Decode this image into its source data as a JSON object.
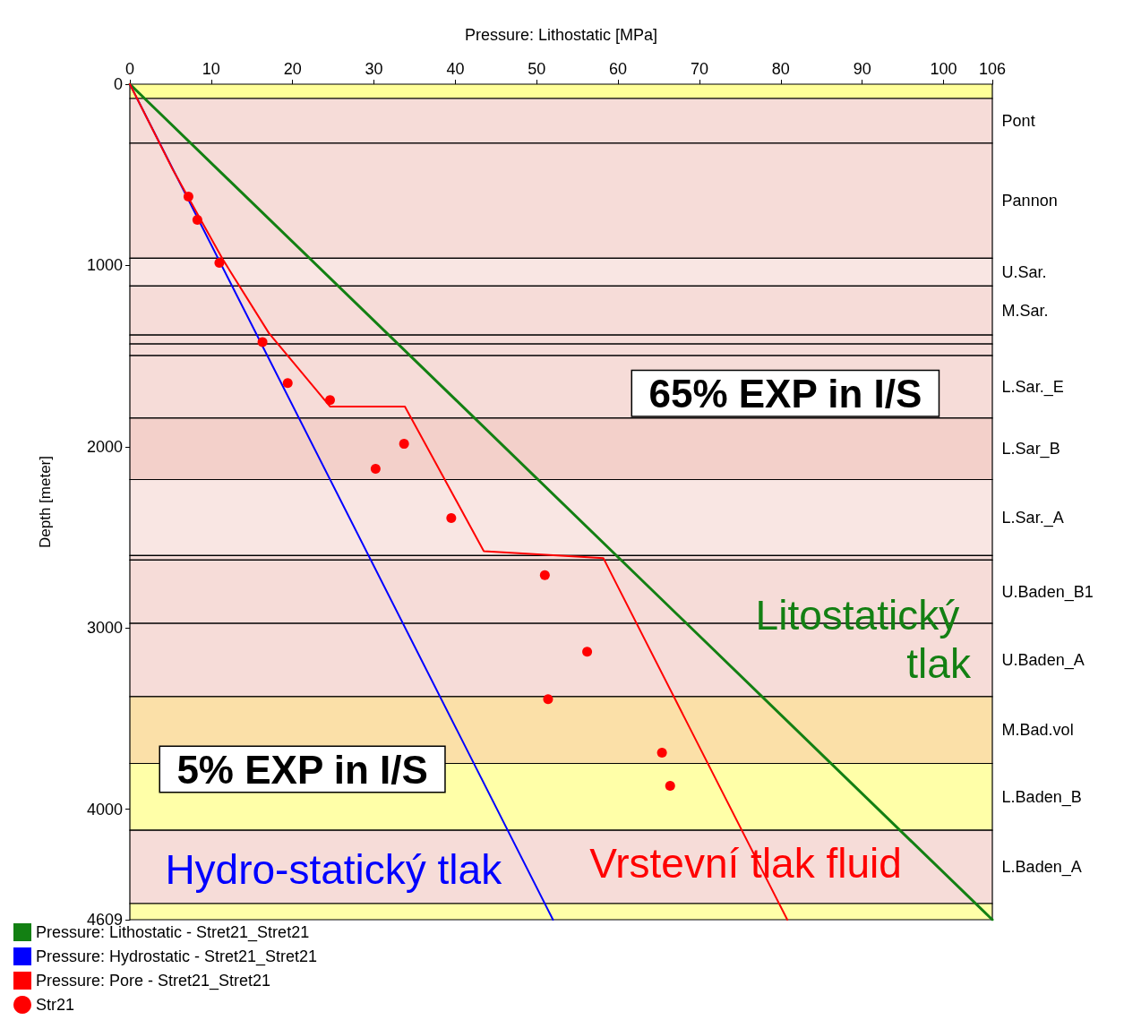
{
  "chart_data": {
    "type": "line",
    "xlabel": "Pressure: Lithostatic [MPa]",
    "ylabel": "Depth [meter]",
    "xlim": [
      0,
      106
    ],
    "xticks": [
      0,
      10,
      20,
      30,
      40,
      50,
      60,
      70,
      80,
      90,
      100,
      106
    ],
    "ylim": [
      4609,
      0
    ],
    "yticks": [
      0,
      1000,
      2000,
      3000,
      4000,
      4609
    ],
    "grid": false,
    "legend": "bottom left",
    "series": [
      {
        "name": "Pressure: Lithostatic - Stret21_Stret21",
        "color": "#138013",
        "marker": "none",
        "line_style": "solid",
        "x": [
          0,
          106
        ],
        "values": [
          0,
          4609
        ]
      },
      {
        "name": "Pressure: Hydrostatic - Stret21_Stret21",
        "color": "#0000ff",
        "marker": "none",
        "line_style": "solid",
        "x": [
          0,
          52
        ],
        "values": [
          0,
          4609
        ]
      },
      {
        "name": "Pressure: Pore - Stret21_Stret21",
        "color": "#ff0000",
        "marker": "none",
        "line_style": "solid",
        "x": [
          0,
          5.3,
          11.4,
          17.1,
          24.6,
          33.8,
          43.5,
          58.2,
          80.8
        ],
        "values": [
          0,
          473,
          965,
          1374,
          1778,
          1778,
          2576,
          2615,
          4609
        ]
      },
      {
        "name": "Str21",
        "type": "scatter",
        "color": "#ff0000",
        "marker": "circle",
        "x": [
          7.2,
          8.3,
          11.0,
          16.3,
          19.4,
          24.6,
          33.7,
          30.2,
          39.5,
          51.0,
          56.2,
          51.4,
          65.4,
          66.4
        ],
        "values": [
          620,
          748,
          985,
          1423,
          1649,
          1743,
          1984,
          2122,
          2393,
          2708,
          3131,
          3392,
          3688,
          3870
        ]
      }
    ],
    "bands": [
      {
        "axis": "y",
        "from": 0,
        "to": 79,
        "color": "#ffff99"
      },
      {
        "axis": "y",
        "from": 79,
        "to": 325,
        "label": "Pont",
        "color": "#f6dcd8"
      },
      {
        "axis": "y",
        "from": 325,
        "to": 960,
        "label": "Pannon",
        "color": "#f6dcd8"
      },
      {
        "axis": "y",
        "from": 960,
        "to": 1113,
        "label": "U.Sar.",
        "color": "#f9e6e3"
      },
      {
        "axis": "y",
        "from": 1113,
        "to": 1384,
        "label": "M.Sar.",
        "color": "#f6dcd8"
      },
      {
        "axis": "y",
        "from": 1384,
        "to": 1433,
        "color": "#f6dcd8"
      },
      {
        "axis": "y",
        "from": 1433,
        "to": 1497,
        "color": "#f6dcd8"
      },
      {
        "axis": "y",
        "from": 1497,
        "to": 1842,
        "label": "L.Sar._E",
        "color": "#f6dcd8"
      },
      {
        "axis": "y",
        "from": 1842,
        "to": 2181,
        "label": "L.Sar_B",
        "color": "#f3d0ca"
      },
      {
        "axis": "y",
        "from": 2181,
        "to": 2600,
        "label": "L.Sar._A",
        "color": "#f9e6e3"
      },
      {
        "axis": "y",
        "from": 2600,
        "to": 2625,
        "color": "#f6dcd8"
      },
      {
        "axis": "y",
        "from": 2625,
        "to": 2974,
        "label": "U.Baden_B1",
        "color": "#f6dcd8"
      },
      {
        "axis": "y",
        "from": 2974,
        "to": 3378,
        "label": "U.Baden_A",
        "color": "#f6dcd8"
      },
      {
        "axis": "y",
        "from": 3378,
        "to": 3747,
        "label": "M.Bad.vol",
        "color": "#fbe0a8"
      },
      {
        "axis": "y",
        "from": 3747,
        "to": 4116,
        "label": "L.Baden_B",
        "color": "#ffffa8"
      },
      {
        "axis": "y",
        "from": 4116,
        "to": 4520,
        "label": "L.Baden_A",
        "color": "#f6dcd8"
      },
      {
        "axis": "y",
        "from": 4520,
        "to": 4609,
        "color": "#ffffa8"
      }
    ],
    "annotations": [
      "65% EXP in I/S",
      "5% EXP in I/S",
      "Litostatický tlak",
      "Hydro-statický tlak",
      "Vrstevní tlak fluid"
    ]
  }
}
